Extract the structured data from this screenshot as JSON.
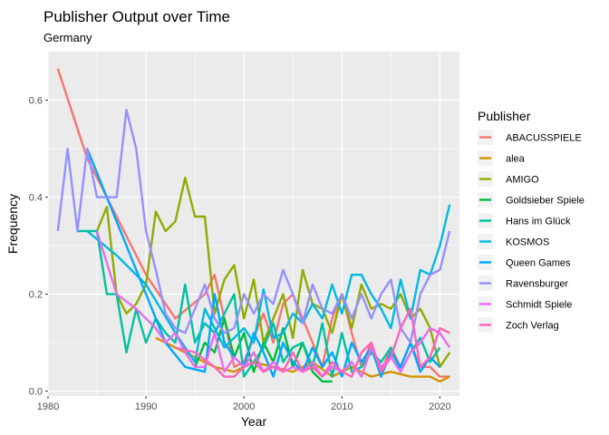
{
  "chart_data": {
    "type": "line",
    "title": "Publisher Output over Time",
    "subtitle": "Germany",
    "xlabel": "Year",
    "ylabel": "Frequency",
    "xlim": [
      1980,
      2022
    ],
    "ylim": [
      -0.01,
      0.7
    ],
    "x_ticks": [
      1980,
      1990,
      2000,
      2010,
      2020
    ],
    "y_ticks": [
      0.0,
      0.2,
      0.4,
      0.6
    ],
    "y_tick_labels": [
      "0.0",
      "0.2",
      "0.4",
      "0.6"
    ],
    "grid": true,
    "legend_title": "Publisher",
    "legend_position": "right",
    "series": [
      {
        "name": "ABACUSSPIELE",
        "color": "#F8766D",
        "x": [
          1981,
          1984,
          1987,
          1990,
          1993,
          1996,
          1997,
          1998,
          1999,
          2000,
          2001,
          2002,
          2003,
          2004,
          2005,
          2006,
          2007,
          2008,
          2009,
          2010,
          2011,
          2012,
          2013,
          2014,
          2015,
          2016,
          2017,
          2018,
          2019,
          2020,
          2021
        ],
        "y": [
          0.665,
          0.48,
          0.36,
          0.24,
          0.15,
          0.2,
          0.24,
          0.15,
          0.05,
          0.06,
          0.11,
          0.16,
          0.1,
          0.18,
          0.2,
          0.15,
          0.1,
          0.05,
          0.15,
          0.2,
          0.12,
          0.05,
          0.1,
          0.04,
          0.09,
          0.05,
          0.1,
          0.05,
          0.05,
          0.03,
          0.03
        ]
      },
      {
        "name": "alea",
        "color": "#D39200",
        "x": [
          1991,
          1993,
          1995,
          1997,
          1999,
          2001,
          2003,
          2005,
          2007,
          2009,
          2011,
          2013,
          2015,
          2017,
          2019,
          2020,
          2021
        ],
        "y": [
          0.11,
          0.09,
          0.07,
          0.05,
          0.04,
          0.06,
          0.05,
          0.04,
          0.06,
          0.03,
          0.05,
          0.03,
          0.04,
          0.03,
          0.03,
          0.02,
          0.03
        ]
      },
      {
        "name": "AMIGO",
        "color": "#93AA00",
        "x": [
          1985,
          1986,
          1987,
          1988,
          1989,
          1990,
          1991,
          1992,
          1993,
          1994,
          1995,
          1996,
          1997,
          1998,
          1999,
          2000,
          2001,
          2002,
          2003,
          2004,
          2005,
          2006,
          2007,
          2008,
          2009,
          2010,
          2011,
          2012,
          2013,
          2014,
          2015,
          2016,
          2017,
          2018,
          2019,
          2020,
          2021
        ],
        "y": [
          0.33,
          0.38,
          0.2,
          0.16,
          0.18,
          0.22,
          0.37,
          0.33,
          0.35,
          0.44,
          0.36,
          0.36,
          0.16,
          0.23,
          0.26,
          0.15,
          0.23,
          0.1,
          0.15,
          0.2,
          0.11,
          0.25,
          0.18,
          0.17,
          0.12,
          0.2,
          0.13,
          0.22,
          0.17,
          0.18,
          0.17,
          0.2,
          0.15,
          0.17,
          0.13,
          0.05,
          0.08
        ]
      },
      {
        "name": "Goldsieber Spiele",
        "color": "#00BA38",
        "x": [
          1995,
          1996,
          1997,
          1998,
          1999,
          2000,
          2001,
          2002,
          2003,
          2004,
          2005,
          2006,
          2007,
          2008,
          2009
        ],
        "y": [
          0.05,
          0.1,
          0.08,
          0.15,
          0.07,
          0.12,
          0.04,
          0.1,
          0.06,
          0.13,
          0.05,
          0.1,
          0.04,
          0.02,
          0.02
        ]
      },
      {
        "name": "Hans im Glück",
        "color": "#00C19F",
        "x": [
          1983,
          1985,
          1986,
          1987,
          1988,
          1989,
          1990,
          1991,
          1992,
          1993,
          1994,
          1995,
          1996,
          1997,
          1998,
          1999,
          2000,
          2001,
          2002,
          2003,
          2004,
          2005,
          2006,
          2007,
          2008,
          2009,
          2010,
          2011,
          2012,
          2013,
          2014,
          2015,
          2016,
          2017,
          2018,
          2019,
          2020
        ],
        "y": [
          0.33,
          0.33,
          0.2,
          0.2,
          0.08,
          0.17,
          0.1,
          0.15,
          0.12,
          0.1,
          0.22,
          0.1,
          0.14,
          0.12,
          0.16,
          0.2,
          0.03,
          0.06,
          0.09,
          0.14,
          0.06,
          0.09,
          0.1,
          0.05,
          0.14,
          0.03,
          0.12,
          0.04,
          0.05,
          0.08,
          0.06,
          0.09,
          0.04,
          0.08,
          0.11,
          0.06,
          0.09
        ]
      },
      {
        "name": "KOSMOS",
        "color": "#00B9E3",
        "x": [
          1984,
          1987,
          1990,
          1993,
          1995,
          1996,
          1997,
          1998,
          1999,
          2000,
          2001,
          2002,
          2003,
          2004,
          2005,
          2006,
          2007,
          2008,
          2009,
          2010,
          2011,
          2012,
          2013,
          2014,
          2015,
          2016,
          2017,
          2018,
          2019,
          2020,
          2021
        ],
        "y": [
          0.33,
          0.28,
          0.22,
          0.12,
          0.06,
          0.17,
          0.13,
          0.09,
          0.11,
          0.13,
          0.1,
          0.21,
          0.11,
          0.12,
          0.16,
          0.14,
          0.18,
          0.15,
          0.22,
          0.16,
          0.24,
          0.24,
          0.2,
          0.17,
          0.13,
          0.23,
          0.15,
          0.25,
          0.24,
          0.3,
          0.385
        ]
      },
      {
        "name": "Queen Games",
        "color": "#00A6FF",
        "x": [
          1984,
          1988,
          1992,
          1994,
          1996,
          1997,
          1998,
          1999,
          2000,
          2001,
          2002,
          2003,
          2004,
          2005,
          2006,
          2007,
          2008,
          2009,
          2010,
          2011,
          2012,
          2013,
          2014,
          2015,
          2016,
          2017,
          2018,
          2019,
          2020
        ],
        "y": [
          0.5,
          0.3,
          0.1,
          0.05,
          0.04,
          0.2,
          0.1,
          0.07,
          0.05,
          0.12,
          0.08,
          0.03,
          0.1,
          0.06,
          0.04,
          0.09,
          0.05,
          0.08,
          0.03,
          0.1,
          0.06,
          0.09,
          0.03,
          0.08,
          0.05,
          0.1,
          0.04,
          0.07,
          0.05
        ]
      },
      {
        "name": "Ravensburger",
        "color": "#9590FF",
        "x": [
          1981,
          1982,
          1983,
          1984,
          1985,
          1986,
          1987,
          1988,
          1989,
          1990,
          1991,
          1992,
          1993,
          1994,
          1995,
          1996,
          1997,
          1998,
          1999,
          2000,
          2001,
          2002,
          2003,
          2004,
          2005,
          2006,
          2007,
          2008,
          2009,
          2010,
          2011,
          2012,
          2013,
          2014,
          2015,
          2016,
          2017,
          2018,
          2019,
          2020,
          2021
        ],
        "y": [
          0.33,
          0.5,
          0.33,
          0.5,
          0.4,
          0.4,
          0.4,
          0.58,
          0.5,
          0.33,
          0.25,
          0.16,
          0.13,
          0.12,
          0.17,
          0.22,
          0.15,
          0.12,
          0.13,
          0.2,
          0.16,
          0.2,
          0.18,
          0.25,
          0.2,
          0.14,
          0.22,
          0.17,
          0.16,
          0.2,
          0.15,
          0.2,
          0.15,
          0.2,
          0.23,
          0.13,
          0.1,
          0.2,
          0.24,
          0.25,
          0.33
        ]
      },
      {
        "name": "Schmidt Spiele",
        "color": "#E76BF3",
        "x": [
          1985,
          1987,
          1989,
          1991,
          1992,
          1993,
          1994,
          1995,
          1996,
          1997,
          1998,
          1999,
          2000,
          2001,
          2002,
          2003,
          2004,
          2005,
          2006,
          2007,
          2008,
          2009,
          2010,
          2011,
          2012,
          2013,
          2014,
          2015,
          2016,
          2017,
          2018,
          2019,
          2020,
          2021
        ],
        "y": [
          0.33,
          0.2,
          0.17,
          0.13,
          0.1,
          0.12,
          0.08,
          0.05,
          0.05,
          0.12,
          0.04,
          0.07,
          0.05,
          0.08,
          0.04,
          0.06,
          0.04,
          0.05,
          0.04,
          0.06,
          0.03,
          0.05,
          0.04,
          0.06,
          0.03,
          0.09,
          0.05,
          0.07,
          0.04,
          0.08,
          0.1,
          0.13,
          0.12,
          0.09
        ]
      },
      {
        "name": "Zoch Verlag",
        "color": "#FF62BC",
        "x": [
          1993,
          1995,
          1997,
          1998,
          1999,
          2000,
          2001,
          2002,
          2003,
          2004,
          2005,
          2006,
          2007,
          2008,
          2009,
          2010,
          2011,
          2012,
          2013,
          2014,
          2015,
          2016,
          2017,
          2018,
          2019,
          2020,
          2021
        ],
        "y": [
          0.09,
          0.08,
          0.05,
          0.03,
          0.03,
          0.05,
          0.06,
          0.04,
          0.05,
          0.04,
          0.08,
          0.04,
          0.05,
          0.03,
          0.06,
          0.04,
          0.03,
          0.08,
          0.1,
          0.04,
          0.07,
          0.13,
          0.17,
          0.05,
          0.07,
          0.13,
          0.12
        ]
      }
    ]
  }
}
